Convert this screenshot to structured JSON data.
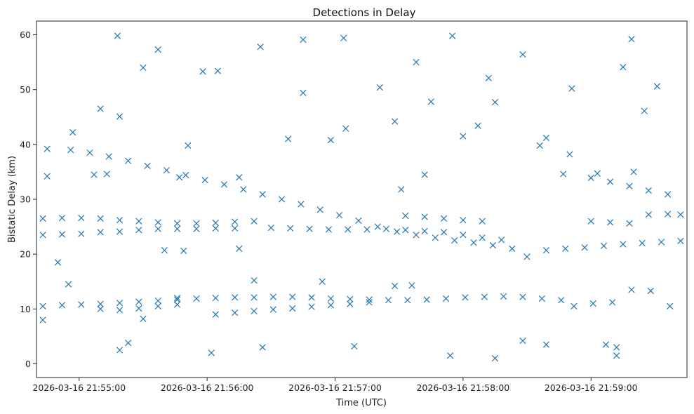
{
  "chart_data": {
    "type": "scatter",
    "title": "Detections in Delay",
    "xlabel": "Time (UTC)",
    "ylabel": "Bistatic Delay (km)",
    "x_ticks": [
      {
        "value": "2026-03-16 21:55:00",
        "label": "2026-03-16 21:55:00"
      },
      {
        "value": "2026-03-16 21:56:00",
        "label": "2026-03-16 21:56:00"
      },
      {
        "value": "2026-03-16 21:57:00",
        "label": "2026-03-16 21:57:00"
      },
      {
        "value": "2026-03-16 21:58:00",
        "label": "2026-03-16 21:58:00"
      },
      {
        "value": "2026-03-16 21:59:00",
        "label": "2026-03-16 21:59:00"
      }
    ],
    "xlim": [
      "2026-03-16 21:54:40",
      "2026-03-16 21:59:45"
    ],
    "ylim": [
      -2.5,
      62.5
    ],
    "y_ticks": [
      0,
      10,
      20,
      30,
      40,
      50,
      60
    ],
    "grid": false,
    "marker": "x",
    "color": "#1f77b4",
    "series": [
      {
        "points": [
          [
            "2026-03-16 21:54:56",
            39.0
          ],
          [
            "2026-03-16 21:55:05",
            38.5
          ],
          [
            "2026-03-16 21:55:14",
            37.8
          ],
          [
            "2026-03-16 21:55:23",
            37.0
          ],
          [
            "2026-03-16 21:55:32",
            36.1
          ],
          [
            "2026-03-16 21:55:41",
            35.3
          ],
          [
            "2026-03-16 21:55:50",
            34.4
          ],
          [
            "2026-03-16 21:55:59",
            33.5
          ],
          [
            "2026-03-16 21:56:08",
            32.7
          ],
          [
            "2026-03-16 21:56:17",
            31.8
          ],
          [
            "2026-03-16 21:56:26",
            30.9
          ],
          [
            "2026-03-16 21:56:35",
            30.0
          ],
          [
            "2026-03-16 21:56:44",
            29.1
          ],
          [
            "2026-03-16 21:56:53",
            28.1
          ],
          [
            "2026-03-16 21:57:02",
            27.1
          ],
          [
            "2026-03-16 21:57:11",
            26.1
          ],
          [
            "2026-03-16 21:57:20",
            25.0
          ],
          [
            "2026-03-16 21:57:29",
            24.1
          ],
          [
            "2026-03-16 21:57:38",
            23.5
          ],
          [
            "2026-03-16 21:57:47",
            23.0
          ],
          [
            "2026-03-16 21:57:56",
            22.5
          ],
          [
            "2026-03-16 21:58:05",
            22.1
          ],
          [
            "2026-03-16 21:58:14",
            21.6
          ],
          [
            "2026-03-16 21:58:23",
            21.0
          ],
          [
            "2026-03-16 21:59:00",
            33.9
          ],
          [
            "2026-03-16 21:59:09",
            33.2
          ],
          [
            "2026-03-16 21:59:18",
            32.4
          ],
          [
            "2026-03-16 21:59:27",
            31.6
          ],
          [
            "2026-03-16 21:59:36",
            30.9
          ],
          [
            "2026-03-16 21:58:30",
            19.5
          ],
          [
            "2026-03-16 21:58:39",
            20.7
          ],
          [
            "2026-03-16 21:58:48",
            21.0
          ],
          [
            "2026-03-16 21:58:57",
            21.2
          ],
          [
            "2026-03-16 21:59:06",
            21.5
          ],
          [
            "2026-03-16 21:59:15",
            21.8
          ],
          [
            "2026-03-16 21:59:24",
            22.0
          ],
          [
            "2026-03-16 21:59:33",
            22.2
          ],
          [
            "2026-03-16 21:59:42",
            22.4
          ],
          [
            "2026-03-16 21:57:24",
            24.6
          ],
          [
            "2026-03-16 21:57:33",
            24.4
          ],
          [
            "2026-03-16 21:57:42",
            24.2
          ],
          [
            "2026-03-16 21:57:51",
            24.0
          ],
          [
            "2026-03-16 21:58:00",
            23.5
          ],
          [
            "2026-03-16 21:58:09",
            23.0
          ],
          [
            "2026-03-16 21:58:18",
            22.6
          ],
          [
            "2026-03-16 21:56:30",
            24.8
          ],
          [
            "2026-03-16 21:56:39",
            24.7
          ],
          [
            "2026-03-16 21:56:48",
            24.6
          ],
          [
            "2026-03-16 21:56:57",
            24.5
          ],
          [
            "2026-03-16 21:57:06",
            24.5
          ],
          [
            "2026-03-16 21:57:15",
            24.5
          ],
          [
            "2026-03-16 21:54:43",
            23.5
          ],
          [
            "2026-03-16 21:54:52",
            23.6
          ],
          [
            "2026-03-16 21:55:01",
            23.7
          ],
          [
            "2026-03-16 21:55:10",
            24.0
          ],
          [
            "2026-03-16 21:55:19",
            24.1
          ],
          [
            "2026-03-16 21:55:28",
            24.4
          ],
          [
            "2026-03-16 21:55:37",
            24.6
          ],
          [
            "2026-03-16 21:55:46",
            24.6
          ],
          [
            "2026-03-16 21:55:55",
            24.6
          ],
          [
            "2026-03-16 21:56:04",
            24.7
          ],
          [
            "2026-03-16 21:56:13",
            24.7
          ],
          [
            "2026-03-16 21:54:43",
            26.5
          ],
          [
            "2026-03-16 21:54:52",
            26.6
          ],
          [
            "2026-03-16 21:55:01",
            26.6
          ],
          [
            "2026-03-16 21:55:10",
            26.5
          ],
          [
            "2026-03-16 21:55:19",
            26.2
          ],
          [
            "2026-03-16 21:55:28",
            26.0
          ],
          [
            "2026-03-16 21:55:37",
            25.8
          ],
          [
            "2026-03-16 21:55:46",
            25.6
          ],
          [
            "2026-03-16 21:55:55",
            25.6
          ],
          [
            "2026-03-16 21:56:04",
            25.7
          ],
          [
            "2026-03-16 21:56:13",
            25.9
          ],
          [
            "2026-03-16 21:56:22",
            26.0
          ],
          [
            "2026-03-16 21:57:33",
            27.0
          ],
          [
            "2026-03-16 21:57:42",
            26.8
          ],
          [
            "2026-03-16 21:57:51",
            26.5
          ],
          [
            "2026-03-16 21:58:00",
            26.2
          ],
          [
            "2026-03-16 21:58:09",
            26.0
          ],
          [
            "2026-03-16 21:59:00",
            26.0
          ],
          [
            "2026-03-16 21:59:09",
            25.8
          ],
          [
            "2026-03-16 21:59:18",
            25.6
          ],
          [
            "2026-03-16 21:59:27",
            27.2
          ],
          [
            "2026-03-16 21:59:36",
            27.3
          ],
          [
            "2026-03-16 21:59:42",
            27.2
          ],
          [
            "2026-03-16 21:54:43",
            10.5
          ],
          [
            "2026-03-16 21:54:52",
            10.7
          ],
          [
            "2026-03-16 21:55:01",
            10.8
          ],
          [
            "2026-03-16 21:55:10",
            10.9
          ],
          [
            "2026-03-16 21:55:19",
            11.1
          ],
          [
            "2026-03-16 21:55:28",
            11.3
          ],
          [
            "2026-03-16 21:55:37",
            11.5
          ],
          [
            "2026-03-16 21:55:46",
            11.7
          ],
          [
            "2026-03-16 21:55:55",
            11.9
          ],
          [
            "2026-03-16 21:56:04",
            12.0
          ],
          [
            "2026-03-16 21:56:13",
            12.1
          ],
          [
            "2026-03-16 21:56:22",
            12.1
          ],
          [
            "2026-03-16 21:56:31",
            12.2
          ],
          [
            "2026-03-16 21:56:40",
            12.2
          ],
          [
            "2026-03-16 21:56:49",
            12.1
          ],
          [
            "2026-03-16 21:56:58",
            11.9
          ],
          [
            "2026-03-16 21:57:07",
            11.8
          ],
          [
            "2026-03-16 21:57:16",
            11.7
          ],
          [
            "2026-03-16 21:57:25",
            11.6
          ],
          [
            "2026-03-16 21:57:34",
            11.6
          ],
          [
            "2026-03-16 21:57:43",
            11.7
          ],
          [
            "2026-03-16 21:57:52",
            11.9
          ],
          [
            "2026-03-16 21:58:01",
            12.1
          ],
          [
            "2026-03-16 21:58:10",
            12.2
          ],
          [
            "2026-03-16 21:58:19",
            12.3
          ],
          [
            "2026-03-16 21:58:28",
            12.2
          ],
          [
            "2026-03-16 21:58:37",
            11.9
          ],
          [
            "2026-03-16 21:58:46",
            11.6
          ],
          [
            "2026-03-16 21:55:10",
            10.0
          ],
          [
            "2026-03-16 21:55:19",
            9.8
          ],
          [
            "2026-03-16 21:55:28",
            10.1
          ],
          [
            "2026-03-16 21:55:37",
            10.5
          ],
          [
            "2026-03-16 21:55:46",
            10.8
          ],
          [
            "2026-03-16 21:56:04",
            9.0
          ],
          [
            "2026-03-16 21:56:13",
            9.3
          ],
          [
            "2026-03-16 21:56:22",
            9.6
          ],
          [
            "2026-03-16 21:56:31",
            9.9
          ],
          [
            "2026-03-16 21:56:40",
            10.1
          ],
          [
            "2026-03-16 21:56:49",
            10.4
          ],
          [
            "2026-03-16 21:56:58",
            10.7
          ],
          [
            "2026-03-16 21:57:07",
            10.9
          ],
          [
            "2026-03-16 21:57:16",
            11.2
          ],
          [
            "2026-03-16 21:58:52",
            10.5
          ],
          [
            "2026-03-16 21:59:01",
            11.0
          ],
          [
            "2026-03-16 21:59:10",
            11.2
          ],
          [
            "2026-03-16 21:59:19",
            13.5
          ],
          [
            "2026-03-16 21:59:28",
            13.3
          ],
          [
            "2026-03-16 21:59:37",
            10.5
          ],
          [
            "2026-03-16 21:55:07",
            34.5
          ],
          [
            "2026-03-16 21:55:13",
            34.6
          ],
          [
            "2026-03-16 21:54:50",
            18.5
          ],
          [
            "2026-03-16 21:54:55",
            14.5
          ],
          [
            "2026-03-16 21:55:40",
            20.7
          ],
          [
            "2026-03-16 21:55:49",
            20.6
          ],
          [
            "2026-03-16 21:56:15",
            21.0
          ],
          [
            "2026-03-16 21:56:22",
            15.2
          ],
          [
            "2026-03-16 21:57:28",
            14.2
          ],
          [
            "2026-03-16 21:57:36",
            14.3
          ],
          [
            "2026-03-16 21:55:58",
            53.3
          ],
          [
            "2026-03-16 21:56:05",
            53.4
          ],
          [
            "2026-03-16 21:58:36",
            39.8
          ],
          [
            "2026-03-16 21:59:20",
            35.0
          ],
          [
            "2026-03-16 21:58:47",
            34.6
          ],
          [
            "2026-03-16 21:58:00",
            41.5
          ],
          [
            "2026-03-16 21:57:38",
            55.0
          ],
          [
            "2026-03-16 21:56:45",
            49.4
          ],
          [
            "2026-03-16 21:56:25",
            57.8
          ],
          [
            "2026-03-16 21:57:21",
            50.4
          ],
          [
            "2026-03-16 21:58:28",
            56.4
          ],
          [
            "2026-03-16 21:57:04",
            59.4
          ],
          [
            "2026-03-16 21:57:55",
            59.8
          ],
          [
            "2026-03-16 21:55:18",
            59.8
          ],
          [
            "2026-03-16 21:55:37",
            57.3
          ],
          [
            "2026-03-16 21:56:45",
            59.1
          ],
          [
            "2026-03-16 21:59:19",
            59.2
          ],
          [
            "2026-03-16 21:59:15",
            54.1
          ],
          [
            "2026-03-16 21:59:31",
            50.6
          ],
          [
            "2026-03-16 21:58:12",
            52.1
          ],
          [
            "2026-03-16 21:58:39",
            41.2
          ],
          [
            "2026-03-16 21:56:38",
            41.0
          ],
          [
            "2026-03-16 21:55:51",
            39.8
          ],
          [
            "2026-03-16 21:55:30",
            54.0
          ],
          [
            "2026-03-16 21:55:10",
            46.5
          ],
          [
            "2026-03-16 21:54:57",
            42.2
          ],
          [
            "2026-03-16 21:55:19",
            45.1
          ],
          [
            "2026-03-16 21:56:58",
            40.8
          ],
          [
            "2026-03-16 21:57:05",
            42.9
          ],
          [
            "2026-03-16 21:57:28",
            44.2
          ],
          [
            "2026-03-16 21:57:45",
            47.8
          ],
          [
            "2026-03-16 21:58:15",
            47.7
          ],
          [
            "2026-03-16 21:58:51",
            50.2
          ],
          [
            "2026-03-16 21:59:25",
            46.1
          ],
          [
            "2026-03-16 21:58:07",
            43.4
          ],
          [
            "2026-03-16 21:59:12",
            1.5
          ],
          [
            "2026-03-16 21:59:12",
            3.0
          ],
          [
            "2026-03-16 21:57:54",
            1.5
          ],
          [
            "2026-03-16 21:58:15",
            1.0
          ],
          [
            "2026-03-16 21:56:02",
            2.0
          ],
          [
            "2026-03-16 21:55:19",
            2.5
          ],
          [
            "2026-03-16 21:55:23",
            3.8
          ],
          [
            "2026-03-16 21:57:09",
            3.2
          ],
          [
            "2026-03-16 21:58:28",
            4.2
          ],
          [
            "2026-03-16 21:59:07",
            3.5
          ],
          [
            "2026-03-16 21:56:26",
            3.0
          ],
          [
            "2026-03-16 21:58:39",
            3.5
          ],
          [
            "2026-03-16 21:54:43",
            8.0
          ],
          [
            "2026-03-16 21:54:45",
            34.2
          ],
          [
            "2026-03-16 21:54:45",
            39.2
          ],
          [
            "2026-03-16 21:55:30",
            8.2
          ],
          [
            "2026-03-16 21:55:46",
            12.0
          ],
          [
            "2026-03-16 21:56:54",
            15.0
          ],
          [
            "2026-03-16 21:57:31",
            31.8
          ],
          [
            "2026-03-16 21:57:42",
            34.5
          ],
          [
            "2026-03-16 21:58:50",
            38.2
          ],
          [
            "2026-03-16 21:59:03",
            34.7
          ],
          [
            "2026-03-16 21:56:15",
            34.0
          ],
          [
            "2026-03-16 21:55:47",
            34.0
          ]
        ]
      }
    ]
  }
}
